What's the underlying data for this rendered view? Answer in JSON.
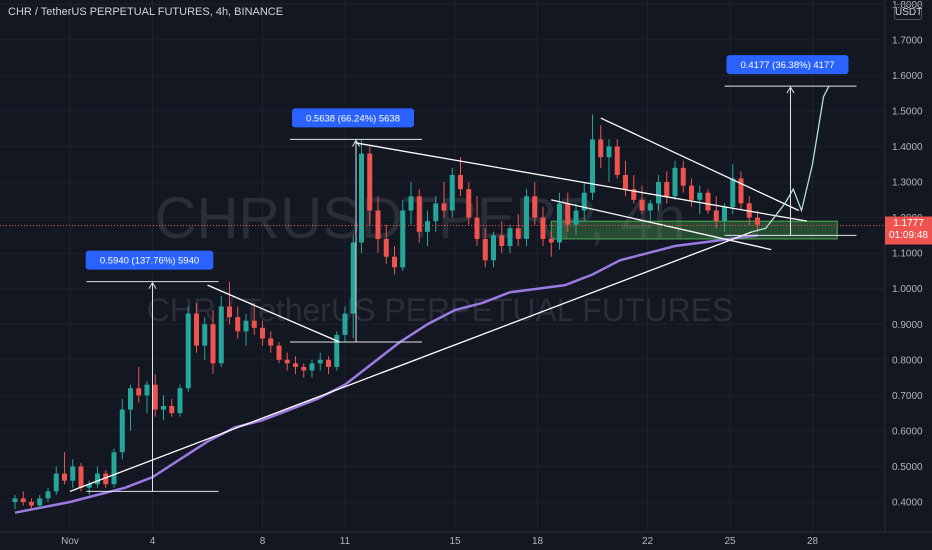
{
  "header": {
    "title": "CHR / TetherUS PERPETUAL FUTURES, 4h, BINANCE"
  },
  "watermark": {
    "symbol": "CHRUSDTPERP, 4h",
    "description": "CHR / TetherUS PERPETUAL FUTURES"
  },
  "axis_unit": "USDT",
  "last_price": {
    "value": "1.1777",
    "countdown": "01:09:48"
  },
  "colors": {
    "background": "#131722",
    "up": "#26a69a",
    "down": "#ef5350",
    "ma": "#9d7ae0",
    "trend": "#ffffff",
    "label": "#2962ff",
    "zone": "#4caf50",
    "price_line": "#ef5350"
  },
  "chart_data": {
    "type": "candlestick",
    "title": "CHR / TetherUS PERPETUAL FUTURES, 4h, BINANCE",
    "y_axis": {
      "ticks": [
        "0.4000",
        "0.5000",
        "0.6000",
        "0.7000",
        "0.8000",
        "0.9000",
        "1.0000",
        "1.1000",
        "1.2000",
        "1.3000",
        "1.4000",
        "1.5000",
        "1.6000",
        "1.7000",
        "1.8000"
      ],
      "range": [
        0.34,
        1.82
      ],
      "position": "right"
    },
    "x_axis": {
      "ticks": [
        "Nov",
        "4",
        "8",
        "11",
        "15",
        "18",
        "22",
        "25",
        "28"
      ],
      "tick_positions": [
        0.0,
        3.0,
        7.0,
        10.0,
        14.0,
        17.0,
        21.0,
        24.0,
        27.0
      ]
    },
    "series": [
      {
        "kind": "candles",
        "candles": [
          [
            -2.0,
            0.4,
            0.42,
            0.38,
            0.41
          ],
          [
            -1.7,
            0.41,
            0.43,
            0.39,
            0.4
          ],
          [
            -1.4,
            0.4,
            0.41,
            0.38,
            0.39
          ],
          [
            -1.1,
            0.39,
            0.42,
            0.38,
            0.41
          ],
          [
            -0.8,
            0.41,
            0.44,
            0.4,
            0.43
          ],
          [
            -0.5,
            0.43,
            0.5,
            0.42,
            0.48
          ],
          [
            -0.2,
            0.48,
            0.54,
            0.45,
            0.46
          ],
          [
            0.1,
            0.46,
            0.52,
            0.44,
            0.5
          ],
          [
            0.4,
            0.5,
            0.51,
            0.43,
            0.44
          ],
          [
            0.7,
            0.44,
            0.46,
            0.42,
            0.45
          ],
          [
            1.0,
            0.45,
            0.5,
            0.44,
            0.48
          ],
          [
            1.3,
            0.48,
            0.49,
            0.44,
            0.45
          ],
          [
            1.6,
            0.45,
            0.55,
            0.44,
            0.54
          ],
          [
            1.9,
            0.54,
            0.69,
            0.52,
            0.66
          ],
          [
            2.2,
            0.66,
            0.73,
            0.6,
            0.72
          ],
          [
            2.5,
            0.72,
            0.78,
            0.68,
            0.7
          ],
          [
            2.8,
            0.7,
            0.74,
            0.65,
            0.73
          ],
          [
            3.1,
            0.73,
            0.76,
            0.64,
            0.66
          ],
          [
            3.4,
            0.66,
            0.7,
            0.63,
            0.67
          ],
          [
            3.7,
            0.67,
            0.69,
            0.64,
            0.65
          ],
          [
            4.0,
            0.65,
            0.73,
            0.64,
            0.72
          ],
          [
            4.3,
            0.72,
            0.95,
            0.71,
            0.93
          ],
          [
            4.6,
            0.93,
            0.96,
            0.82,
            0.84
          ],
          [
            4.9,
            0.84,
            0.92,
            0.8,
            0.9
          ],
          [
            5.2,
            0.9,
            0.94,
            0.76,
            0.79
          ],
          [
            5.5,
            0.79,
            0.98,
            0.78,
            0.95
          ],
          [
            5.8,
            0.95,
            1.02,
            0.9,
            0.92
          ],
          [
            6.1,
            0.92,
            0.95,
            0.86,
            0.88
          ],
          [
            6.4,
            0.88,
            0.93,
            0.84,
            0.91
          ],
          [
            6.7,
            0.91,
            0.96,
            0.87,
            0.89
          ],
          [
            7.0,
            0.89,
            0.91,
            0.84,
            0.86
          ],
          [
            7.3,
            0.86,
            0.88,
            0.82,
            0.84
          ],
          [
            7.6,
            0.84,
            0.85,
            0.79,
            0.8
          ],
          [
            7.9,
            0.8,
            0.82,
            0.77,
            0.79
          ],
          [
            8.2,
            0.79,
            0.81,
            0.76,
            0.78
          ],
          [
            8.5,
            0.78,
            0.79,
            0.75,
            0.77
          ],
          [
            8.8,
            0.77,
            0.8,
            0.75,
            0.79
          ],
          [
            9.1,
            0.79,
            0.82,
            0.77,
            0.8
          ],
          [
            9.4,
            0.8,
            0.81,
            0.76,
            0.78
          ],
          [
            9.7,
            0.78,
            0.88,
            0.77,
            0.87
          ],
          [
            10.0,
            0.87,
            0.95,
            0.85,
            0.93
          ],
          [
            10.3,
            0.93,
            1.15,
            0.86,
            1.13
          ],
          [
            10.6,
            1.13,
            1.42,
            1.1,
            1.38
          ],
          [
            10.9,
            1.38,
            1.4,
            1.18,
            1.22
          ],
          [
            11.2,
            1.22,
            1.26,
            1.1,
            1.14
          ],
          [
            11.5,
            1.14,
            1.18,
            1.07,
            1.09
          ],
          [
            11.8,
            1.09,
            1.12,
            1.04,
            1.06
          ],
          [
            12.1,
            1.06,
            1.25,
            1.05,
            1.22
          ],
          [
            12.4,
            1.22,
            1.3,
            1.18,
            1.26
          ],
          [
            12.7,
            1.26,
            1.28,
            1.13,
            1.16
          ],
          [
            13.0,
            1.16,
            1.22,
            1.12,
            1.19
          ],
          [
            13.3,
            1.19,
            1.26,
            1.16,
            1.24
          ],
          [
            13.6,
            1.24,
            1.3,
            1.2,
            1.22
          ],
          [
            13.9,
            1.22,
            1.34,
            1.2,
            1.32
          ],
          [
            14.2,
            1.32,
            1.37,
            1.26,
            1.28
          ],
          [
            14.5,
            1.28,
            1.3,
            1.18,
            1.2
          ],
          [
            14.8,
            1.2,
            1.26,
            1.12,
            1.14
          ],
          [
            15.1,
            1.14,
            1.17,
            1.06,
            1.08
          ],
          [
            15.4,
            1.08,
            1.16,
            1.06,
            1.15
          ],
          [
            15.7,
            1.15,
            1.19,
            1.1,
            1.12
          ],
          [
            16.0,
            1.12,
            1.18,
            1.1,
            1.17
          ],
          [
            16.3,
            1.17,
            1.21,
            1.12,
            1.14
          ],
          [
            16.6,
            1.14,
            1.28,
            1.12,
            1.26
          ],
          [
            16.9,
            1.26,
            1.3,
            1.18,
            1.2
          ],
          [
            17.2,
            1.2,
            1.23,
            1.12,
            1.14
          ],
          [
            17.5,
            1.14,
            1.16,
            1.09,
            1.13
          ],
          [
            17.8,
            1.13,
            1.27,
            1.11,
            1.24
          ],
          [
            18.1,
            1.24,
            1.27,
            1.16,
            1.18
          ],
          [
            18.4,
            1.18,
            1.24,
            1.15,
            1.22
          ],
          [
            18.7,
            1.22,
            1.3,
            1.19,
            1.27
          ],
          [
            19.0,
            1.27,
            1.49,
            1.25,
            1.42
          ],
          [
            19.3,
            1.42,
            1.46,
            1.34,
            1.37
          ],
          [
            19.6,
            1.37,
            1.42,
            1.3,
            1.4
          ],
          [
            19.9,
            1.4,
            1.42,
            1.31,
            1.32
          ],
          [
            20.2,
            1.32,
            1.36,
            1.26,
            1.28
          ],
          [
            20.5,
            1.28,
            1.32,
            1.24,
            1.25
          ],
          [
            20.8,
            1.25,
            1.29,
            1.21,
            1.22
          ],
          [
            21.1,
            1.22,
            1.25,
            1.19,
            1.24
          ],
          [
            21.4,
            1.24,
            1.32,
            1.22,
            1.3
          ],
          [
            21.7,
            1.3,
            1.33,
            1.24,
            1.26
          ],
          [
            22.0,
            1.26,
            1.36,
            1.25,
            1.34
          ],
          [
            22.3,
            1.34,
            1.36,
            1.27,
            1.29
          ],
          [
            22.6,
            1.29,
            1.31,
            1.23,
            1.25
          ],
          [
            22.9,
            1.25,
            1.29,
            1.21,
            1.27
          ],
          [
            23.2,
            1.27,
            1.28,
            1.21,
            1.22
          ],
          [
            23.5,
            1.22,
            1.26,
            1.17,
            1.19
          ],
          [
            23.8,
            1.19,
            1.24,
            1.16,
            1.23
          ],
          [
            24.1,
            1.23,
            1.35,
            1.21,
            1.31
          ],
          [
            24.4,
            1.31,
            1.33,
            1.22,
            1.24
          ],
          [
            24.7,
            1.24,
            1.26,
            1.18,
            1.2
          ],
          [
            25.0,
            1.2,
            1.22,
            1.16,
            1.18
          ]
        ]
      },
      {
        "kind": "moving_average",
        "name": "",
        "points": [
          [
            -2.0,
            0.37
          ],
          [
            0.0,
            0.4
          ],
          [
            1.0,
            0.42
          ],
          [
            2.0,
            0.44
          ],
          [
            3.0,
            0.47
          ],
          [
            4.0,
            0.52
          ],
          [
            5.0,
            0.57
          ],
          [
            6.0,
            0.61
          ],
          [
            7.0,
            0.63
          ],
          [
            8.0,
            0.66
          ],
          [
            9.0,
            0.69
          ],
          [
            10.0,
            0.73
          ],
          [
            11.0,
            0.79
          ],
          [
            12.0,
            0.85
          ],
          [
            13.0,
            0.9
          ],
          [
            14.0,
            0.94
          ],
          [
            15.0,
            0.96
          ],
          [
            16.0,
            0.99
          ],
          [
            17.0,
            1.0
          ],
          [
            18.0,
            1.01
          ],
          [
            19.0,
            1.04
          ],
          [
            20.0,
            1.08
          ],
          [
            21.0,
            1.1
          ],
          [
            22.0,
            1.12
          ],
          [
            23.0,
            1.13
          ],
          [
            24.0,
            1.14
          ],
          [
            25.0,
            1.15
          ]
        ]
      }
    ],
    "trendlines": [
      [
        [
          0.0,
          0.43
        ],
        [
          24.8,
          1.16
        ]
      ],
      [
        [
          5.0,
          1.01
        ],
        [
          9.8,
          0.85
        ]
      ],
      [
        [
          10.4,
          1.41
        ],
        [
          26.8,
          1.19
        ]
      ],
      [
        [
          19.3,
          1.48
        ],
        [
          26.5,
          1.22
        ]
      ],
      [
        [
          17.5,
          1.25
        ],
        [
          25.5,
          1.11
        ]
      ]
    ],
    "measure_annotations": [
      {
        "label": "0.5940 (137.76%) 5940",
        "from": 0.43,
        "to": 1.02,
        "x": 3.0
      },
      {
        "label": "0.5638 (66.24%) 5638",
        "from": 0.85,
        "to": 1.42,
        "x": 10.4
      },
      {
        "label": "0.4177 (36.38%) 4177",
        "from": 1.15,
        "to": 1.57,
        "x": 26.2
      }
    ],
    "projection_path": [
      [
        24.8,
        1.16
      ],
      [
        25.3,
        1.17
      ],
      [
        25.7,
        1.21
      ],
      [
        26.0,
        1.24
      ],
      [
        26.3,
        1.28
      ],
      [
        26.6,
        1.22
      ],
      [
        27.0,
        1.35
      ],
      [
        27.4,
        1.54
      ],
      [
        27.6,
        1.57
      ]
    ],
    "support_zone": {
      "x_range": [
        17.5,
        27.9
      ],
      "y_range": [
        1.14,
        1.19
      ]
    },
    "current_price": 1.1777
  }
}
